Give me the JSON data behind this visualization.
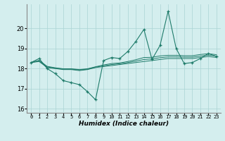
{
  "xlabel": "Humidex (Indice chaleur)",
  "x_values": [
    0,
    1,
    2,
    3,
    4,
    5,
    6,
    7,
    8,
    9,
    10,
    11,
    12,
    13,
    14,
    15,
    16,
    17,
    18,
    19,
    20,
    21,
    22,
    23
  ],
  "main_line": [
    18.3,
    18.5,
    18.0,
    17.75,
    17.4,
    17.3,
    17.2,
    16.85,
    16.45,
    18.4,
    18.55,
    18.5,
    18.85,
    19.35,
    19.95,
    18.45,
    19.15,
    20.85,
    19.0,
    18.25,
    18.3,
    18.5,
    18.75,
    18.6
  ],
  "trend1": [
    18.3,
    18.35,
    18.05,
    18.0,
    17.95,
    17.95,
    17.9,
    17.95,
    18.05,
    18.1,
    18.15,
    18.2,
    18.25,
    18.3,
    18.35,
    18.4,
    18.45,
    18.5,
    18.5,
    18.5,
    18.5,
    18.55,
    18.6,
    18.55
  ],
  "trend2": [
    18.3,
    18.38,
    18.08,
    18.02,
    17.97,
    17.97,
    17.93,
    17.97,
    18.07,
    18.14,
    18.2,
    18.24,
    18.3,
    18.37,
    18.45,
    18.48,
    18.54,
    18.58,
    18.58,
    18.57,
    18.57,
    18.62,
    18.67,
    18.62
  ],
  "trend3": [
    18.3,
    18.41,
    18.11,
    18.04,
    17.99,
    17.99,
    17.95,
    17.99,
    18.09,
    18.18,
    18.25,
    18.28,
    18.35,
    18.44,
    18.55,
    18.56,
    18.63,
    18.66,
    18.66,
    18.64,
    18.64,
    18.7,
    18.74,
    18.69
  ],
  "ylim": [
    15.8,
    21.2
  ],
  "yticks": [
    16,
    17,
    18,
    19,
    20
  ],
  "line_color": "#1e7b6a",
  "bg_color": "#d4eeee",
  "grid_color": "#aad4d4",
  "figsize": [
    3.2,
    2.0
  ],
  "dpi": 100
}
